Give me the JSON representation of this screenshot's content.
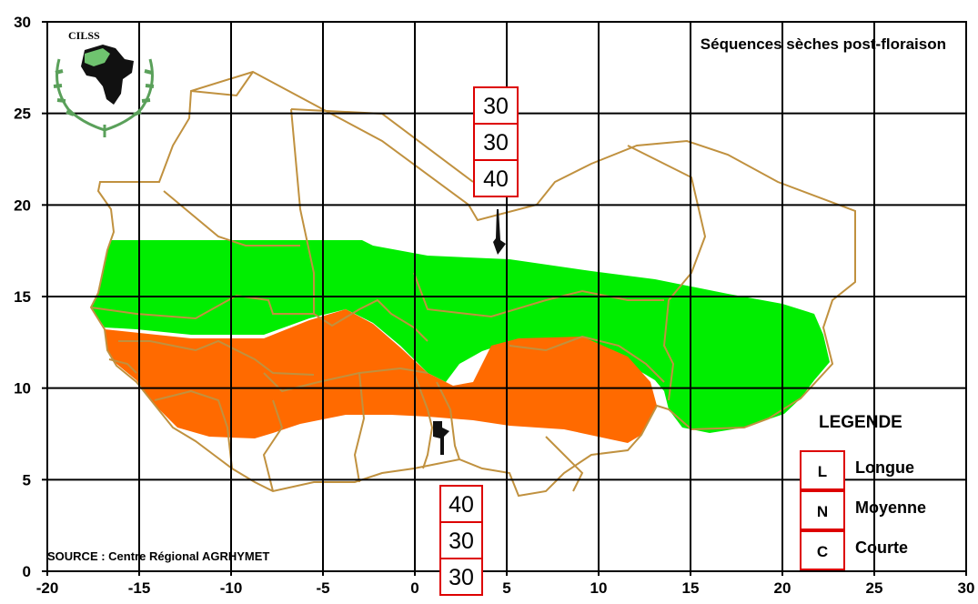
{
  "title": "Séquences sèches post-floraison",
  "source": "SOURCE : Centre Régional AGRHYMET",
  "logo_text": "CILSS",
  "colors": {
    "long": "#00ee00",
    "medium": "#ff6a00",
    "border": "#c0913f",
    "box": "#dd0000",
    "grid": "#000000"
  },
  "axes": {
    "x_ticks": [
      "-20",
      "-15",
      "-10",
      "-5",
      "0",
      "5",
      "10",
      "15",
      "20",
      "25",
      "30"
    ],
    "y_ticks": [
      "0",
      "5",
      "10",
      "15",
      "20",
      "25",
      "30"
    ],
    "xlim": [
      -20,
      30
    ],
    "ylim": [
      0,
      30
    ]
  },
  "north_station": {
    "values": [
      "30",
      "30",
      "40"
    ]
  },
  "south_station": {
    "values": [
      "40",
      "30",
      "30"
    ]
  },
  "legend": {
    "title": "LEGENDE",
    "items": [
      {
        "code": "L",
        "label": "Longue"
      },
      {
        "code": "N",
        "label": "Moyenne"
      },
      {
        "code": "C",
        "label": "Courte"
      }
    ]
  }
}
